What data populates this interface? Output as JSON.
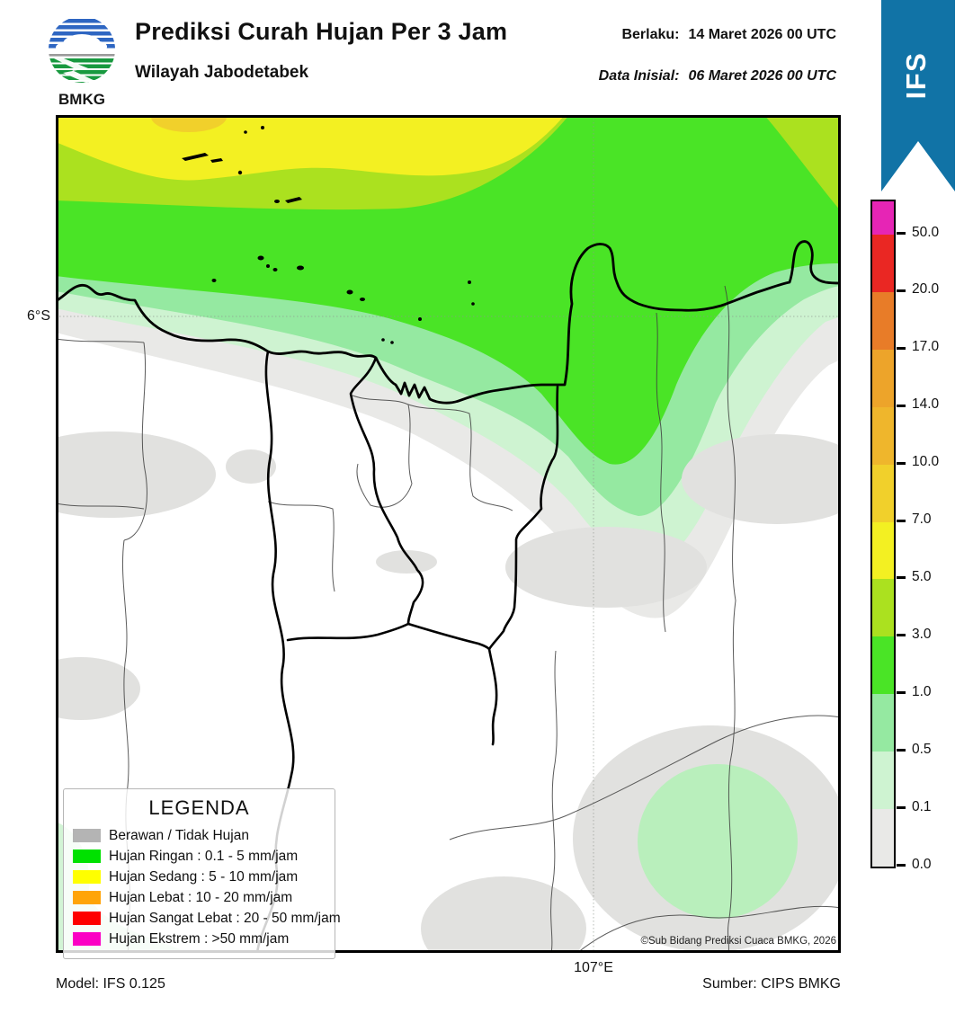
{
  "header": {
    "logo_caption": "BMKG",
    "title": "Prediksi Curah Hujan Per 3 Jam",
    "subtitle": "Wilayah Jabodetabek",
    "valid_label": "Berlaku:",
    "valid_value": "14 Maret 2026 00 UTC",
    "initial_label": "Data Inisial:",
    "initial_value": "06 Maret 2026 00 UTC",
    "ribbon_label": "IFS"
  },
  "map": {
    "lat_tick": "6°S",
    "lon_tick": "107°E",
    "copyright": "©Sub Bidang Prediksi Cuaca BMKG, 2026"
  },
  "legend": {
    "title": "LEGENDA",
    "items": [
      {
        "label": "Berawan / Tidak Hujan",
        "color": "#b4b4b4"
      },
      {
        "label": "Hujan Ringan : 0.1 - 5 mm/jam",
        "color": "#00e100"
      },
      {
        "label": "Hujan Sedang : 5 - 10 mm/jam",
        "color": "#ffff00"
      },
      {
        "label": "Hujan Lebat : 10 - 20 mm/jam",
        "color": "#ffa408"
      },
      {
        "label": "Hujan Sangat Lebat : 20 - 50 mm/jam",
        "color": "#fe0000"
      },
      {
        "label": "Hujan Ekstrem : >50 mm/jam",
        "color": "#fb00c4"
      }
    ]
  },
  "colorbar": {
    "scale": [
      {
        "label": "50.0",
        "color": "#e625b5"
      },
      {
        "label": "20.0",
        "color": "#ea2723"
      },
      {
        "label": "17.0",
        "color": "#e87c28"
      },
      {
        "label": "14.0",
        "color": "#eda42a"
      },
      {
        "label": "10.0",
        "color": "#efb62c"
      },
      {
        "label": "7.0",
        "color": "#f1d02b"
      },
      {
        "label": "5.0",
        "color": "#f3f022"
      },
      {
        "label": "3.0",
        "color": "#abe11f"
      },
      {
        "label": "1.0",
        "color": "#4ae426"
      },
      {
        "label": "0.5",
        "color": "#95e9a1"
      },
      {
        "label": "0.1",
        "color": "#cef3d1"
      },
      {
        "label": "0.0",
        "color": "#e9e9e7"
      }
    ]
  },
  "colors": {
    "ribbon": "#1173a6",
    "cloud": "#e1e1df",
    "rain_patch": "#b9efbc",
    "corner_patch": "#d2f4d5"
  },
  "footer": {
    "model": "Model: IFS 0.125",
    "source": "Sumber: CIPS BMKG"
  }
}
